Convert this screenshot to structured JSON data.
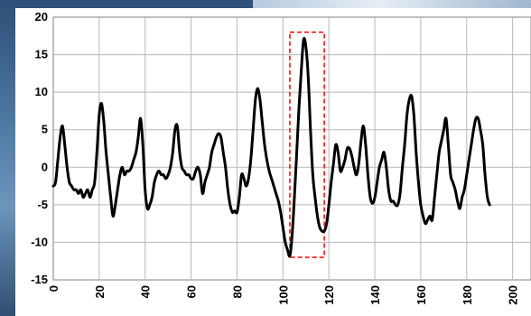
{
  "chart_data": {
    "type": "line",
    "title": "",
    "xlabel": "",
    "ylabel": "",
    "xlim": [
      0,
      208
    ],
    "ylim": [
      -15,
      20
    ],
    "x_ticks": [
      "0",
      "20",
      "40",
      "60",
      "80",
      "100",
      "120",
      "140",
      "160",
      "180",
      "200"
    ],
    "y_ticks": [
      "20",
      "15",
      "10",
      "5",
      "0",
      "-5",
      "-10",
      "-15"
    ],
    "grid": true,
    "series": [
      {
        "color": "#000000",
        "points": [
          [
            0,
            -2.5
          ],
          [
            1,
            -2
          ],
          [
            2,
            1
          ],
          [
            3,
            4
          ],
          [
            4,
            5.5
          ],
          [
            5,
            3
          ],
          [
            6,
            0
          ],
          [
            7,
            -2
          ],
          [
            8,
            -2.5
          ],
          [
            9,
            -3
          ],
          [
            10,
            -3
          ],
          [
            11,
            -3.5
          ],
          [
            12,
            -3
          ],
          [
            13,
            -4
          ],
          [
            14,
            -3.5
          ],
          [
            15,
            -3
          ],
          [
            16,
            -4
          ],
          [
            17,
            -3
          ],
          [
            18,
            -2
          ],
          [
            19,
            2
          ],
          [
            20,
            7
          ],
          [
            21,
            8.5
          ],
          [
            22,
            6
          ],
          [
            23,
            2
          ],
          [
            24,
            -1
          ],
          [
            25,
            -4
          ],
          [
            26,
            -6.5
          ],
          [
            27,
            -5
          ],
          [
            28,
            -3
          ],
          [
            29,
            -1
          ],
          [
            30,
            0
          ],
          [
            31,
            -1
          ],
          [
            32,
            -0.5
          ],
          [
            33,
            -0.5
          ],
          [
            34,
            0
          ],
          [
            35,
            1
          ],
          [
            36,
            2
          ],
          [
            37,
            4
          ],
          [
            38,
            6.5
          ],
          [
            39,
            3
          ],
          [
            40,
            -3
          ],
          [
            41,
            -5.5
          ],
          [
            42,
            -5
          ],
          [
            43,
            -4
          ],
          [
            44,
            -2
          ],
          [
            45,
            -1
          ],
          [
            46,
            -0.5
          ],
          [
            47,
            -1
          ],
          [
            48,
            -1
          ],
          [
            49,
            -1.5
          ],
          [
            50,
            -1
          ],
          [
            51,
            0
          ],
          [
            52,
            2
          ],
          [
            53,
            5
          ],
          [
            54,
            5.5
          ],
          [
            55,
            2
          ],
          [
            56,
            0
          ],
          [
            57,
            -0.5
          ],
          [
            58,
            -1
          ],
          [
            59,
            -1
          ],
          [
            60,
            -1.5
          ],
          [
            61,
            -1.5
          ],
          [
            62,
            -0.5
          ],
          [
            63,
            0
          ],
          [
            64,
            -1
          ],
          [
            65,
            -3.5
          ],
          [
            66,
            -2
          ],
          [
            67,
            -1
          ],
          [
            68,
            0
          ],
          [
            69,
            2
          ],
          [
            70,
            3
          ],
          [
            71,
            4
          ],
          [
            72,
            4.5
          ],
          [
            73,
            4
          ],
          [
            74,
            2
          ],
          [
            75,
            0
          ],
          [
            76,
            -3
          ],
          [
            77,
            -5
          ],
          [
            78,
            -6
          ],
          [
            79,
            -5.8
          ],
          [
            80,
            -6
          ],
          [
            81,
            -4
          ],
          [
            82,
            -1
          ],
          [
            83,
            -1.5
          ],
          [
            84,
            -2.5
          ],
          [
            85,
            -1.5
          ],
          [
            86,
            1
          ],
          [
            87,
            5
          ],
          [
            88,
            9
          ],
          [
            89,
            10.5
          ],
          [
            90,
            9
          ],
          [
            91,
            6
          ],
          [
            92,
            3
          ],
          [
            93,
            1
          ],
          [
            94,
            -0.5
          ],
          [
            95,
            -1.5
          ],
          [
            96,
            -2.5
          ],
          [
            97,
            -3.5
          ],
          [
            98,
            -4.5
          ],
          [
            99,
            -6
          ],
          [
            100,
            -8
          ],
          [
            101,
            -10
          ],
          [
            102,
            -11
          ],
          [
            103,
            -11.8
          ],
          [
            104,
            -9
          ],
          [
            105,
            -4
          ],
          [
            106,
            2
          ],
          [
            107,
            8
          ],
          [
            108,
            13
          ],
          [
            109,
            17
          ],
          [
            110,
            16
          ],
          [
            111,
            12
          ],
          [
            112,
            5
          ],
          [
            113,
            -1
          ],
          [
            114,
            -4
          ],
          [
            115,
            -6.5
          ],
          [
            116,
            -8
          ],
          [
            117,
            -8.5
          ],
          [
            118,
            -8.5
          ],
          [
            119,
            -7.5
          ],
          [
            120,
            -5
          ],
          [
            121,
            -2
          ],
          [
            122,
            0.5
          ],
          [
            123,
            3
          ],
          [
            124,
            2
          ],
          [
            125,
            -0.5
          ],
          [
            126,
            0
          ],
          [
            127,
            1
          ],
          [
            128,
            2.5
          ],
          [
            129,
            2.5
          ],
          [
            130,
            1.5
          ],
          [
            131,
            0
          ],
          [
            132,
            -1
          ],
          [
            133,
            0.5
          ],
          [
            134,
            3.5
          ],
          [
            135,
            5.5
          ],
          [
            136,
            3
          ],
          [
            137,
            -1
          ],
          [
            138,
            -4
          ],
          [
            139,
            -4.8
          ],
          [
            140,
            -4
          ],
          [
            141,
            -2
          ],
          [
            142,
            0
          ],
          [
            143,
            1
          ],
          [
            144,
            2
          ],
          [
            145,
            0
          ],
          [
            146,
            -3
          ],
          [
            147,
            -4.5
          ],
          [
            148,
            -4.5
          ],
          [
            149,
            -5
          ],
          [
            150,
            -5
          ],
          [
            151,
            -3.5
          ],
          [
            152,
            0
          ],
          [
            153,
            3
          ],
          [
            154,
            7
          ],
          [
            155,
            9
          ],
          [
            156,
            9.5
          ],
          [
            157,
            7
          ],
          [
            158,
            2
          ],
          [
            159,
            -2
          ],
          [
            160,
            -5
          ],
          [
            161,
            -6.5
          ],
          [
            162,
            -7.5
          ],
          [
            163,
            -7
          ],
          [
            164,
            -6.5
          ],
          [
            165,
            -7
          ],
          [
            166,
            -4
          ],
          [
            167,
            -1
          ],
          [
            168,
            2
          ],
          [
            169,
            3.5
          ],
          [
            170,
            5
          ],
          [
            171,
            6.5
          ],
          [
            172,
            3
          ],
          [
            173,
            -1
          ],
          [
            174,
            -2
          ],
          [
            175,
            -3
          ],
          [
            176,
            -4.5
          ],
          [
            177,
            -5.5
          ],
          [
            178,
            -4
          ],
          [
            179,
            -3
          ],
          [
            180,
            -1
          ],
          [
            181,
            1
          ],
          [
            182,
            3
          ],
          [
            183,
            5
          ],
          [
            184,
            6.5
          ],
          [
            185,
            6.5
          ],
          [
            186,
            5
          ],
          [
            187,
            3
          ],
          [
            188,
            -1
          ],
          [
            189,
            -4
          ],
          [
            190,
            -5
          ]
        ]
      }
    ],
    "annotation": {
      "type": "dashed-rectangle",
      "color": "#ff0000",
      "x_range": [
        103,
        118
      ],
      "y_range": [
        -12,
        18
      ]
    }
  }
}
